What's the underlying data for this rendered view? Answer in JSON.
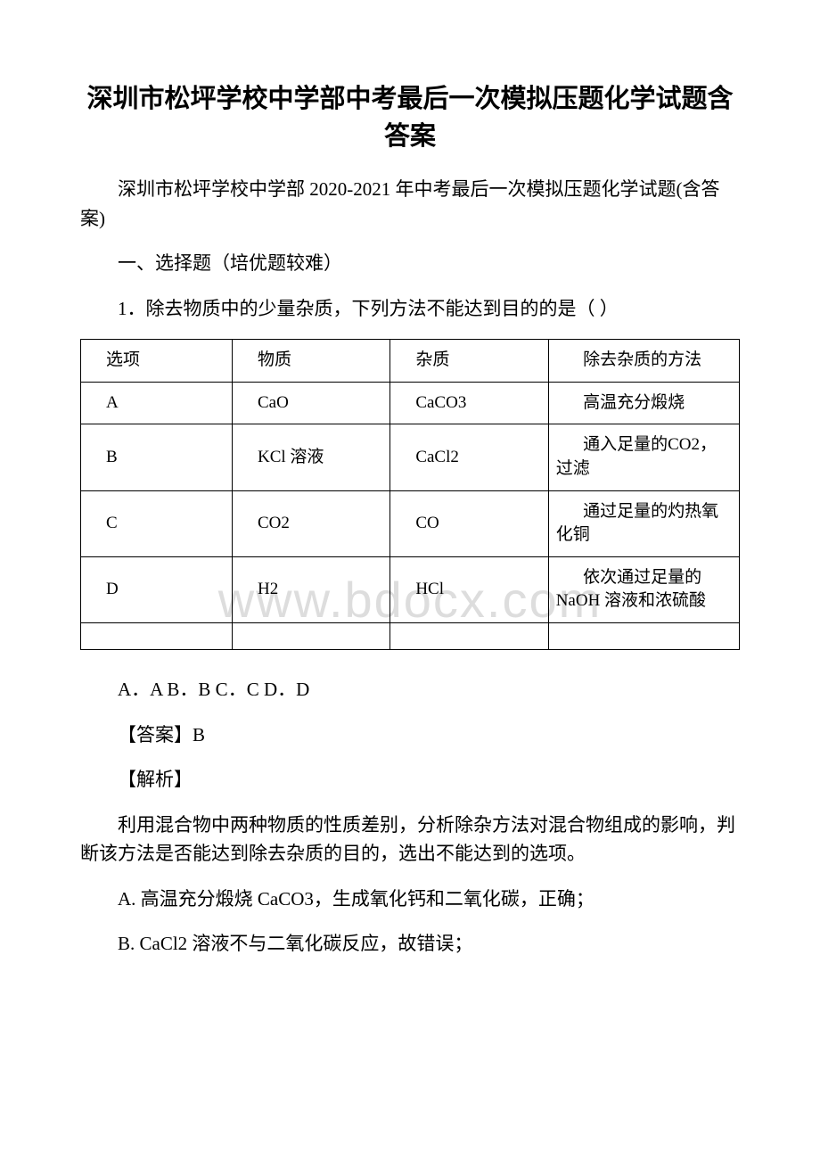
{
  "title": "深圳市松坪学校中学部中考最后一次模拟压题化学试题含答案",
  "intro": "深圳市松坪学校中学部 2020-2021 年中考最后一次模拟压题化学试题(含答案)",
  "section": "一、选择题（培优题较难）",
  "q1": "1．除去物质中的少量杂质，下列方法不能达到目的的是（ ）",
  "table": {
    "columns": [
      "选项",
      "物质",
      "杂质",
      "除去杂质的方法"
    ],
    "rows": [
      [
        "A",
        "CaO",
        "CaCO3",
        "高温充分煅烧"
      ],
      [
        "B",
        "KCl 溶液",
        "CaCl2",
        "通入足量的CO2，过滤"
      ],
      [
        "C",
        "CO2",
        "CO",
        "通过足量的灼热氧化铜"
      ],
      [
        "D",
        "H2",
        "HCl",
        "依次通过足量的 NaOH 溶液和浓硫酸"
      ]
    ]
  },
  "options": "A．A B．B C．C D．D",
  "answer": "【答案】B",
  "explain_label": "【解析】",
  "explain_body": "利用混合物中两种物质的性质差别，分析除杂方法对混合物组成的影响，判断该方法是否能达到除去杂质的目的，选出不能达到的选项。",
  "expA": "A. 高温充分煅烧 CaCO3，生成氧化钙和二氧化碳，正确；",
  "expB": "B. CaCl2 溶液不与二氧化碳反应，故错误；",
  "watermark": "www.bdocx.com",
  "colors": {
    "text": "#000000",
    "background": "#ffffff",
    "watermark": "#dddddd",
    "border": "#000000"
  },
  "fonts": {
    "title_size": 29,
    "body_size": 21,
    "table_size": 19,
    "watermark_size": 56
  }
}
